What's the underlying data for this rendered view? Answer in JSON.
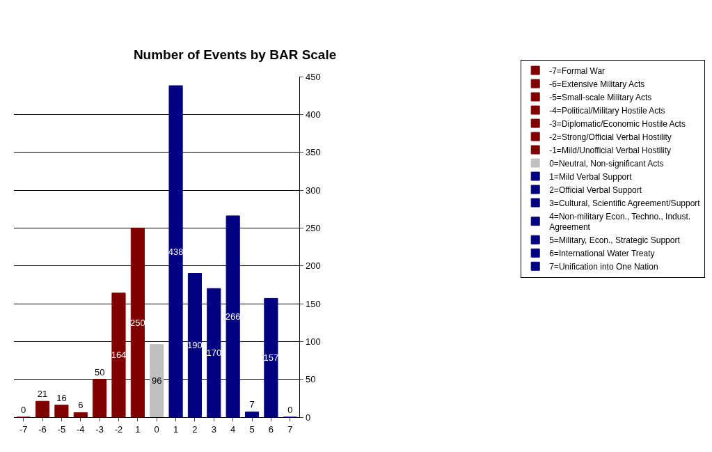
{
  "chart_data": {
    "type": "bar",
    "title": "Number of Events by BAR Scale",
    "categories": [
      "-7",
      "-6",
      "-5",
      "-4",
      "-3",
      "-2",
      "1",
      "0",
      "1",
      "2",
      "3",
      "4",
      "5",
      "6",
      "7"
    ],
    "series": [
      {
        "name": "-7=Formal War",
        "color": "#800000",
        "values": [
          0,
          null,
          null,
          null,
          null,
          null,
          null,
          null,
          null,
          null,
          null,
          null,
          null,
          null,
          null
        ]
      },
      {
        "name": "-6=Extensive Military Acts",
        "color": "#800000",
        "values": [
          null,
          21,
          null,
          null,
          null,
          null,
          null,
          null,
          null,
          null,
          null,
          null,
          null,
          null,
          null
        ]
      },
      {
        "name": "-5=Small-scale Military Acts",
        "color": "#800000",
        "values": [
          null,
          null,
          16,
          null,
          null,
          null,
          null,
          null,
          null,
          null,
          null,
          null,
          null,
          null,
          null
        ]
      },
      {
        "name": "-4=Political/Military Hostile Acts",
        "color": "#800000",
        "values": [
          null,
          null,
          null,
          6,
          null,
          null,
          null,
          null,
          null,
          null,
          null,
          null,
          null,
          null,
          null
        ]
      },
      {
        "name": "-3=Diplomatic/Economic Hostile Acts",
        "color": "#800000",
        "values": [
          null,
          null,
          null,
          null,
          50,
          null,
          null,
          null,
          null,
          null,
          null,
          null,
          null,
          null,
          null
        ]
      },
      {
        "name": "-2=Strong/Official Verbal Hostility",
        "color": "#800000",
        "values": [
          null,
          null,
          null,
          null,
          null,
          164,
          null,
          null,
          null,
          null,
          null,
          null,
          null,
          null,
          null
        ]
      },
      {
        "name": "-1=Mild/Unofficial Verbal Hostility",
        "color": "#800000",
        "values": [
          null,
          null,
          null,
          null,
          null,
          null,
          250,
          null,
          null,
          null,
          null,
          null,
          null,
          null,
          null
        ]
      },
      {
        "name": "0=Neutral, Non-significant Acts",
        "color": "#c0c0c0",
        "values": [
          null,
          null,
          null,
          null,
          null,
          null,
          null,
          96,
          null,
          null,
          null,
          null,
          null,
          null,
          null
        ]
      },
      {
        "name": "1=Mild Verbal Support",
        "color": "#000080",
        "values": [
          null,
          null,
          null,
          null,
          null,
          null,
          null,
          null,
          438,
          null,
          null,
          null,
          null,
          null,
          null
        ]
      },
      {
        "name": "2=Official Verbal Support",
        "color": "#000080",
        "values": [
          null,
          null,
          null,
          null,
          null,
          null,
          null,
          null,
          null,
          190,
          null,
          null,
          null,
          null,
          null
        ]
      },
      {
        "name": "3=Cultural, Scientific Agreement/Support",
        "color": "#000080",
        "values": [
          null,
          null,
          null,
          null,
          null,
          null,
          null,
          null,
          null,
          null,
          170,
          null,
          null,
          null,
          null
        ]
      },
      {
        "name": "4=Non-military Econ., Techno., Indust. Agreement",
        "color": "#000080",
        "values": [
          null,
          null,
          null,
          null,
          null,
          null,
          null,
          null,
          null,
          null,
          null,
          266,
          null,
          null,
          null
        ]
      },
      {
        "name": "5=Military, Econ., Strategic Support",
        "color": "#000080",
        "values": [
          null,
          null,
          null,
          null,
          null,
          null,
          null,
          null,
          null,
          null,
          null,
          null,
          7,
          null,
          null
        ]
      },
      {
        "name": "6=International Water Treaty",
        "color": "#000080",
        "values": [
          null,
          null,
          null,
          null,
          null,
          null,
          null,
          null,
          null,
          null,
          null,
          null,
          null,
          157,
          null
        ]
      },
      {
        "name": "7=Unification into One Nation",
        "color": "#000080",
        "values": [
          null,
          null,
          null,
          null,
          null,
          null,
          null,
          null,
          null,
          null,
          null,
          null,
          null,
          null,
          0
        ]
      }
    ],
    "ylim": [
      0,
      450
    ],
    "yticks": [
      0,
      50,
      100,
      150,
      200,
      250,
      300,
      350,
      400,
      450
    ],
    "grid": "y",
    "legend": "right",
    "data_labels": true
  }
}
